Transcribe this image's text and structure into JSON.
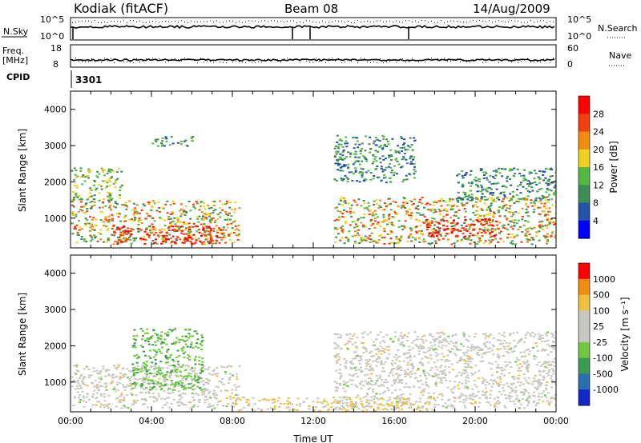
{
  "header": {
    "station": "Kodiak (fitACF)",
    "beam": "Beam 08",
    "date": "14/Aug/2009"
  },
  "aux_panels": {
    "nsky_label": "N.Sky",
    "nsky_ticks": [
      "10^5",
      "10^0"
    ],
    "nsearch_label": "N.Search",
    "freq_label_1": "Freq.",
    "freq_label_2": "[MHz]",
    "freq_ticks": [
      "18",
      "8"
    ],
    "nave_label": "Nave",
    "nave_ticks": [
      "60",
      "0"
    ],
    "cpid_label": "CPID",
    "cpid_value": "3301"
  },
  "chart_data": [
    {
      "type": "heatmap",
      "name_panel": "power",
      "ylabel": "Slant Range [km]",
      "xlabel": "",
      "ylim": [
        180,
        4500
      ],
      "xlim": [
        0,
        24
      ],
      "yticks": [
        1000,
        2000,
        3000,
        4000
      ],
      "colorbar": {
        "label": "Power [dB]",
        "levels": [
          4,
          8,
          12,
          16,
          20,
          24,
          28
        ],
        "colors": [
          "#0000ff",
          "#2255a8",
          "#3d8e55",
          "#55b845",
          "#f0d020",
          "#f08c10",
          "#f04010",
          "#ff0000"
        ]
      },
      "regions": [
        {
          "t0": 0.0,
          "t1": 8.3,
          "r0": 300,
          "r1": 1500,
          "level": "high"
        },
        {
          "t0": 2.0,
          "t1": 7.5,
          "r0": 300,
          "r1": 800,
          "level": "max"
        },
        {
          "t0": 0.0,
          "t1": 2.5,
          "r0": 1500,
          "r1": 2400,
          "level": "mid"
        },
        {
          "t0": 4.0,
          "t1": 6.0,
          "r0": 3000,
          "r1": 3300,
          "level": "low"
        },
        {
          "t0": 13.0,
          "t1": 24.0,
          "r0": 300,
          "r1": 1600,
          "level": "high"
        },
        {
          "t0": 17.5,
          "t1": 21.0,
          "r0": 500,
          "r1": 1000,
          "level": "max"
        },
        {
          "t0": 13.0,
          "t1": 17.0,
          "r0": 2000,
          "r1": 3300,
          "level": "low"
        },
        {
          "t0": 19.0,
          "t1": 24.0,
          "r0": 1500,
          "r1": 2400,
          "level": "low"
        }
      ]
    },
    {
      "type": "heatmap",
      "name_panel": "velocity",
      "ylabel": "Slant Range [km]",
      "xlabel": "Time UT",
      "ylim": [
        180,
        4500
      ],
      "xlim": [
        0,
        24
      ],
      "yticks": [
        1000,
        2000,
        3000,
        4000
      ],
      "xticks": [
        "00:00",
        "04:00",
        "08:00",
        "12:00",
        "16:00",
        "20:00",
        "00:00"
      ],
      "colorbar": {
        "label": "Velocity [m s⁻¹]",
        "levels": [
          1000,
          500,
          100,
          25,
          -25,
          -100,
          -500,
          -1000
        ],
        "colors": [
          "#1428c8",
          "#2a70b0",
          "#3c9a50",
          "#6ec840",
          "#c8c8c0",
          "#c8c8c0",
          "#f0c040",
          "#f08c10",
          "#ff0000"
        ]
      },
      "regions": [
        {
          "t0": 0.0,
          "t1": 8.3,
          "r0": 300,
          "r1": 1500,
          "level": "gray"
        },
        {
          "t0": 3.0,
          "t1": 6.5,
          "r0": 800,
          "r1": 2500,
          "level": "green"
        },
        {
          "t0": 13.0,
          "t1": 24.0,
          "r0": 300,
          "r1": 2400,
          "level": "gray"
        },
        {
          "t0": 8.0,
          "t1": 18.0,
          "r0": 200,
          "r1": 600,
          "level": "orange"
        }
      ]
    }
  ]
}
